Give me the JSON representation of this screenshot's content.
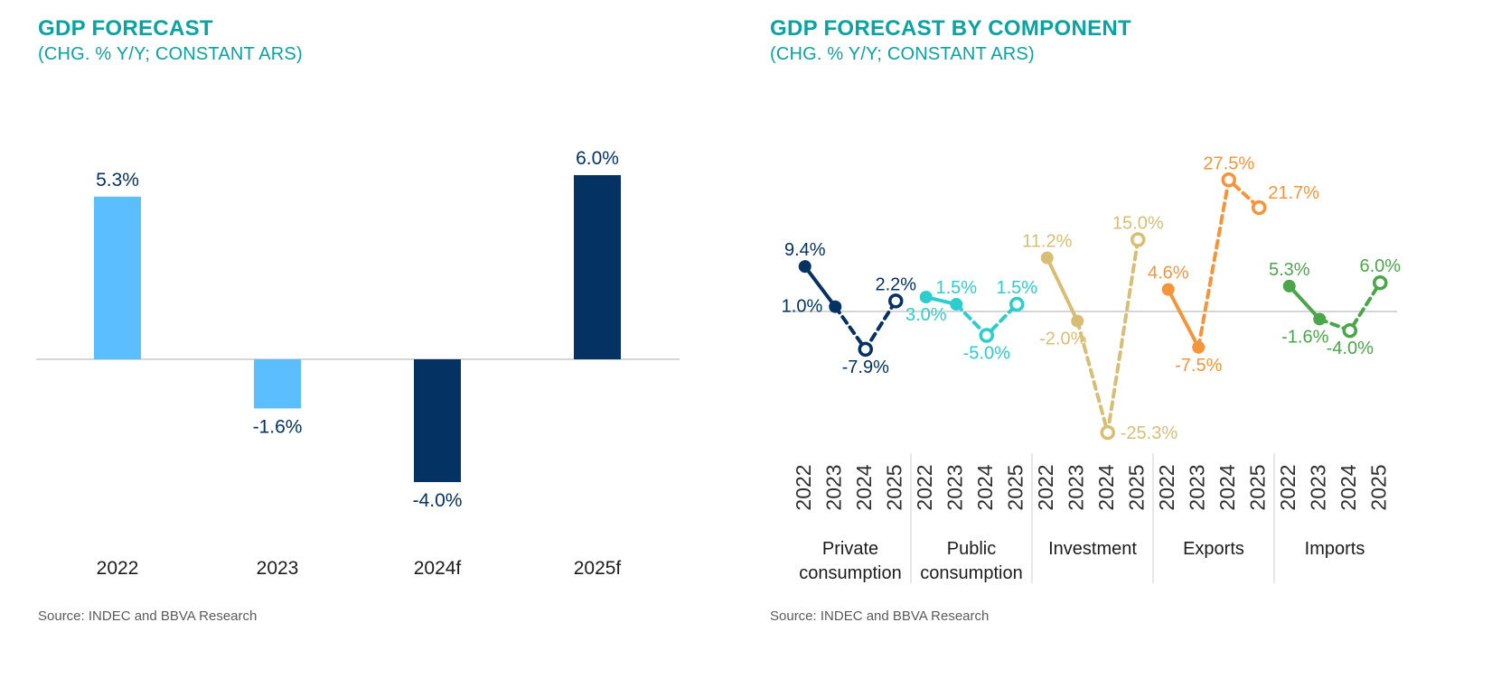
{
  "colors": {
    "title_teal": "#0BA2A2",
    "navy": "#043263",
    "light_blue": "#5BBEFF",
    "category_text": "#1C1C1C",
    "tick_text": "#2E2E2E",
    "axis_gray": "#C9C9C9",
    "separator_gray": "#CFCFCF",
    "source_gray": "#5A5A5A"
  },
  "chart_data": [
    {
      "type": "bar",
      "title": "GDP FORECAST",
      "subtitle": "(CHG. % Y/Y; CONSTANT ARS)",
      "categories": [
        "2022",
        "2023",
        "2024f",
        "2025f"
      ],
      "values": [
        5.3,
        -1.6,
        -4.0,
        6.0
      ],
      "value_labels": [
        "5.3%",
        "-1.6%",
        "-4.0%",
        "6.0%"
      ],
      "bar_colors": [
        "#5BBEFF",
        "#5BBEFF",
        "#043263",
        "#043263"
      ],
      "ylim": [
        -6,
        8
      ],
      "grid": false,
      "legend": "none",
      "source": "Source: INDEC and BBVA Research"
    },
    {
      "type": "line",
      "title": "GDP FORECAST BY COMPONENT",
      "subtitle": "(CHG. % Y/Y; CONSTANT ARS)",
      "x_ticks": [
        "2022",
        "2023",
        "2024",
        "2025"
      ],
      "ylim": [
        -30,
        32
      ],
      "grid": false,
      "legend": "none",
      "style_note": "solid line for 2022-2023 actuals with filled markers; dashed line for 2024-2025 forecasts with open markers",
      "solid_segment_end_index": 1,
      "series": [
        {
          "name": "Private consumption",
          "name_lines": [
            "Private",
            "consumption"
          ],
          "color": "#043263",
          "values": [
            9.4,
            1.0,
            -7.9,
            2.2
          ],
          "value_labels": [
            "9.4%",
            "1.0%",
            "-7.9%",
            "2.2%"
          ],
          "label_pos": [
            "above",
            "left",
            "below",
            "above"
          ]
        },
        {
          "name": "Public consumption",
          "name_lines": [
            "Public",
            "consumption"
          ],
          "color": "#2DCCCD",
          "values": [
            3.0,
            1.5,
            -5.0,
            1.5
          ],
          "value_labels": [
            "3.0%",
            "1.5%",
            "-5.0%",
            "1.5%"
          ],
          "label_pos": [
            "below",
            "above",
            "below",
            "above"
          ]
        },
        {
          "name": "Investment",
          "name_lines": [
            "Investment"
          ],
          "color": "#D8BE75",
          "values": [
            11.2,
            -2.0,
            -25.3,
            15.0
          ],
          "value_labels": [
            "11.2%",
            "-2.0%",
            "-25.3%",
            "15.0%"
          ],
          "label_pos": [
            "above",
            "below-left",
            "right",
            "above"
          ]
        },
        {
          "name": "Exports",
          "name_lines": [
            "Exports"
          ],
          "color": "#F5953B",
          "values": [
            4.6,
            -7.5,
            27.5,
            21.7
          ],
          "value_labels": [
            "4.6%",
            "-7.5%",
            "27.5%",
            "21.7%"
          ],
          "label_pos": [
            "above",
            "below",
            "above",
            "above-right"
          ]
        },
        {
          "name": "Imports",
          "name_lines": [
            "Imports"
          ],
          "color": "#4BA64B",
          "values": [
            5.3,
            -1.6,
            -4.0,
            6.0
          ],
          "value_labels": [
            "5.3%",
            "-1.6%",
            "-4.0%",
            "6.0%"
          ],
          "label_pos": [
            "above",
            "below-left",
            "below",
            "above"
          ]
        }
      ],
      "source": "Source: INDEC and BBVA Research"
    }
  ]
}
